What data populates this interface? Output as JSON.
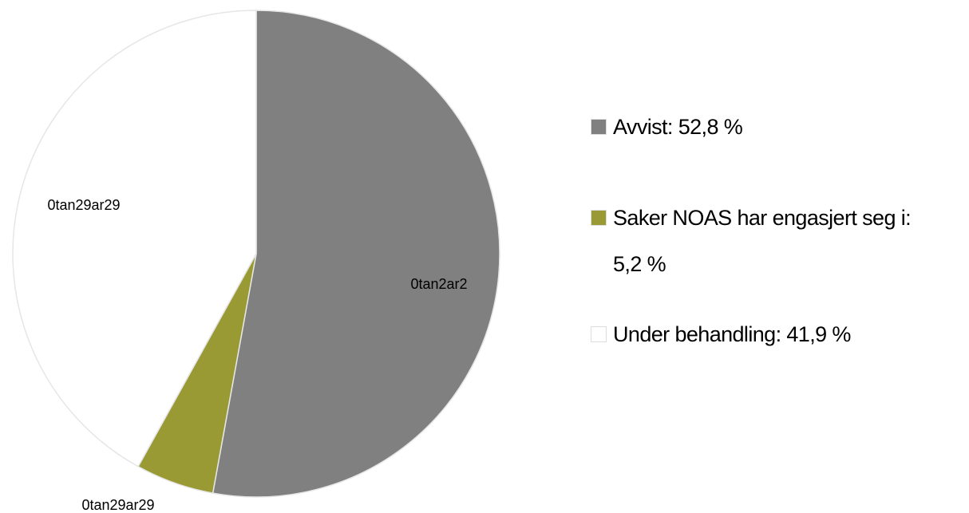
{
  "chart_data": {
    "type": "pie",
    "categories": [
      "Avvist: 52,8 %",
      "Saker NOAS har engasjert seg i: 5,2 %",
      "Under behandling: 41,9 %"
    ],
    "values": [
      52.8,
      5.2,
      41.9
    ],
    "colors": [
      "#808080",
      "#9a9a35",
      "#ffffff"
    ],
    "data_labels": [
      "0tan2ar2",
      "0tan29ar29",
      "0tan29ar29"
    ],
    "legend": "right"
  }
}
